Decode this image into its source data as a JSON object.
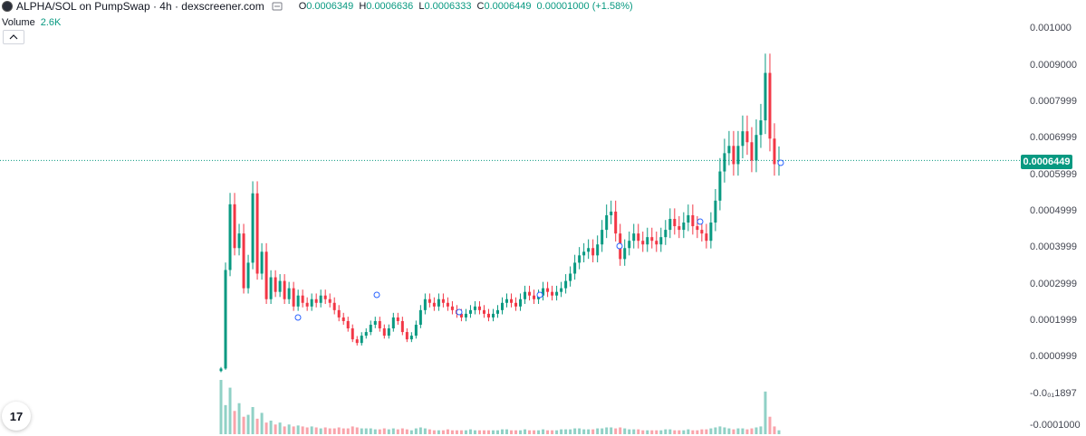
{
  "header": {
    "pair_title": "ALPHA/SOL on PumpSwap · 4h · dexscreener.com",
    "ohlc": {
      "o_label": "O",
      "o": "0.0006349",
      "h_label": "H",
      "h": "0.0006636",
      "l_label": "L",
      "l": "0.0006333",
      "c_label": "C",
      "c": "0.0006449",
      "change": "0.00001000 (+1.58%)"
    },
    "volume_label": "Volume",
    "volume_value": "2.6K",
    "collapse_icon": "chevron-up-icon",
    "logo_text": "17"
  },
  "colors": {
    "up": "#089981",
    "down": "#f23645",
    "neutral_candle": "#5d5d5d",
    "grid": "#ffffff",
    "price_line": "#089981"
  },
  "chart_data": {
    "type": "candlestick",
    "title": "ALPHA/SOL on PumpSwap · 4h · dexscreener.com",
    "last_price_label": "0.0006449",
    "y_ticks": [
      "0.001000",
      "0.0009000",
      "0.0007999",
      "0.0006999",
      "0.0005999",
      "0.0004999",
      "0.0003999",
      "0.0002999",
      "0.0001999",
      "0.0000999",
      "-0.0₀₁1897",
      "-0.0001000"
    ],
    "ylim": [
      -0.0001,
      0.00105
    ],
    "legend": "top-left",
    "grid": false,
    "series": [
      {
        "name": "Price",
        "close_values": [
          7e-05,
          0.00034,
          0.00052,
          0.0004,
          0.00044,
          0.00029,
          0.00036,
          0.00055,
          0.00033,
          0.00039,
          0.00026,
          0.00032,
          0.00028,
          0.00031,
          0.00026,
          0.00029,
          0.00024,
          0.00027,
          0.00025,
          0.00024,
          0.00026,
          0.00025,
          0.00027,
          0.00026,
          0.00025,
          0.00023,
          0.00021,
          0.0002,
          0.00018,
          0.00015,
          0.00014,
          0.00016,
          0.00017,
          0.00019,
          0.0002,
          0.00018,
          0.00016,
          0.00018,
          0.00021,
          0.0002,
          0.00017,
          0.00015,
          0.00016,
          0.00019,
          0.00023,
          0.00026,
          0.00025,
          0.00024,
          0.00026,
          0.00025,
          0.00024,
          0.00023,
          0.00022,
          0.00021,
          0.00022,
          0.00023,
          0.00024,
          0.00023,
          0.00022,
          0.00021,
          0.00022,
          0.00023,
          0.00025,
          0.00026,
          0.00025,
          0.00024,
          0.00026,
          0.00028,
          0.00027,
          0.00026,
          0.00027,
          0.00029,
          0.00028,
          0.00027,
          0.00028,
          0.00029,
          0.00031,
          0.00033,
          0.00036,
          0.00038,
          0.00039,
          0.0004,
          0.00038,
          0.00041,
          0.00045,
          0.00049,
          0.0005,
          0.00044,
          0.00037,
          0.0004,
          0.00042,
          0.00044,
          0.00042,
          0.00041,
          0.00043,
          0.00042,
          0.00041,
          0.00043,
          0.00045,
          0.00048,
          0.00046,
          0.00045,
          0.00047,
          0.00049,
          0.00046,
          0.00045,
          0.00044,
          0.00042,
          0.00047,
          0.00053,
          0.00061,
          0.00066,
          0.00068,
          0.00063,
          0.00068,
          0.00072,
          0.00069,
          0.00064,
          0.00071,
          0.00075,
          0.00088,
          0.0007,
          0.00063,
          0.00064
        ],
        "volume_values": [
          2.8,
          1.5,
          2.4,
          1.2,
          1.6,
          0.9,
          1.0,
          1.4,
          0.8,
          1.1,
          0.6,
          0.7,
          0.5,
          0.6,
          0.4,
          0.5,
          0.4,
          0.45,
          0.4,
          0.35,
          0.4,
          0.35,
          0.3,
          0.35,
          0.3,
          0.3,
          0.35,
          0.3,
          0.3,
          0.4,
          0.35,
          0.3,
          0.3,
          0.3,
          0.25,
          0.25,
          0.3,
          0.25,
          0.3,
          0.25,
          0.3,
          0.25,
          0.2,
          0.3,
          0.35,
          0.3,
          0.25,
          0.2,
          0.2,
          0.2,
          0.25,
          0.2,
          0.2,
          0.2,
          0.2,
          0.25,
          0.2,
          0.2,
          0.2,
          0.2,
          0.2,
          0.2,
          0.25,
          0.25,
          0.2,
          0.2,
          0.2,
          0.25,
          0.2,
          0.2,
          0.2,
          0.25,
          0.2,
          0.2,
          0.2,
          0.25,
          0.25,
          0.25,
          0.3,
          0.3,
          0.25,
          0.25,
          0.25,
          0.3,
          0.3,
          0.35,
          0.35,
          0.3,
          0.35,
          0.3,
          0.25,
          0.25,
          0.25,
          0.2,
          0.2,
          0.2,
          0.2,
          0.2,
          0.25,
          0.25,
          0.2,
          0.2,
          0.2,
          0.25,
          0.2,
          0.2,
          0.25,
          0.25,
          0.3,
          0.35,
          0.4,
          0.35,
          0.3,
          0.25,
          0.3,
          0.3,
          0.25,
          0.3,
          0.35,
          0.4,
          2.2,
          0.9,
          0.4,
          0.2
        ]
      }
    ]
  }
}
